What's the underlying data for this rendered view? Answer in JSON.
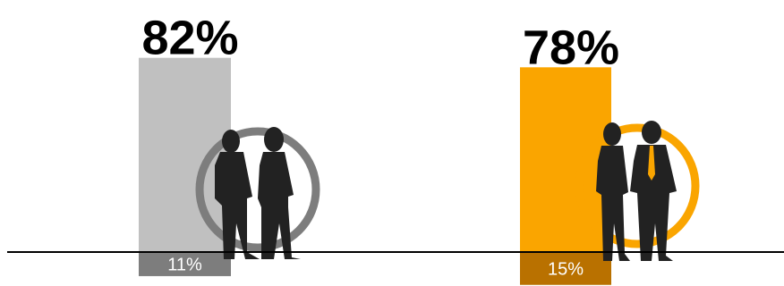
{
  "chart_data": {
    "type": "bar",
    "categories": [
      "",
      ""
    ],
    "series": [
      {
        "values": [
          82,
          78
        ]
      },
      {
        "values": [
          11,
          15
        ]
      }
    ],
    "labels": {
      "above_axis": [
        "82%",
        "78%"
      ],
      "below_axis": [
        "11%",
        "15%"
      ]
    },
    "ylim": [
      0,
      100
    ],
    "colors": {
      "bar_above": [
        "#c0c0c0",
        "#faa500"
      ],
      "bar_below": [
        "#7d7d7d",
        "#b97100"
      ],
      "ring": [
        "#7d7d7d",
        "#faa500"
      ],
      "silhouette": "#222222",
      "tie_accent": [
        "#222222",
        "#faa500"
      ],
      "axis": "#000000"
    },
    "icons": [
      "couple-silhouette-icon",
      "business-couple-silhouette-icon"
    ],
    "grid": false,
    "legend": "none"
  }
}
